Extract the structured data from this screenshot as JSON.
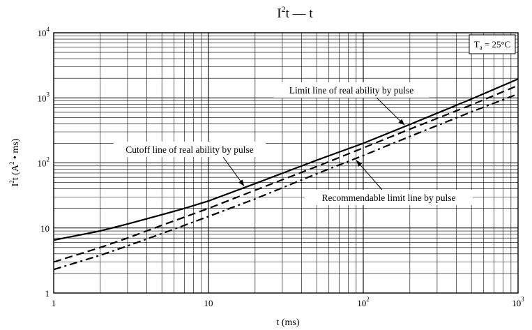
{
  "chart_data": {
    "type": "line",
    "title": {
      "main": "I",
      "sup": "2",
      "rest": "t — t"
    },
    "xlabel": "t (ms)",
    "ylabel": {
      "prefix": "I",
      "sup": "2",
      "middle": "t (A",
      "sup2": "2",
      "rest": " • ms)"
    },
    "x_scale": "log",
    "y_scale": "log",
    "xlim": [
      1,
      1000
    ],
    "ylim": [
      1,
      10000
    ],
    "grid": true,
    "x_ticks": [
      {
        "value": 1,
        "base": "1",
        "exp": ""
      },
      {
        "value": 10,
        "base": "10",
        "exp": ""
      },
      {
        "value": 100,
        "base": "10",
        "exp": "2"
      },
      {
        "value": 1000,
        "base": "10",
        "exp": "3"
      }
    ],
    "y_ticks": [
      {
        "value": 1,
        "base": "1",
        "exp": ""
      },
      {
        "value": 10,
        "base": "10",
        "exp": ""
      },
      {
        "value": 100,
        "base": "10",
        "exp": "2"
      },
      {
        "value": 1000,
        "base": "10",
        "exp": "3"
      },
      {
        "value": 10000,
        "base": "10",
        "exp": "4"
      }
    ],
    "condition": {
      "prefix": "T",
      "sub": "a",
      "rest": " = 25°C"
    },
    "series": [
      {
        "name": "Limit line of real ability by pulse",
        "style": "solid",
        "points": [
          [
            1,
            6.5
          ],
          [
            2,
            9
          ],
          [
            3,
            11.5
          ],
          [
            5,
            16
          ],
          [
            7,
            20
          ],
          [
            10,
            26
          ],
          [
            20,
            48
          ],
          [
            50,
            110
          ],
          [
            100,
            200
          ],
          [
            200,
            390
          ],
          [
            500,
            960
          ],
          [
            1000,
            1950
          ]
        ]
      },
      {
        "name": "Cutoff line of real ability by pulse",
        "style": "dashed",
        "points": [
          [
            1,
            3
          ],
          [
            2,
            5
          ],
          [
            3,
            7
          ],
          [
            5,
            11
          ],
          [
            10,
            20
          ],
          [
            20,
            38
          ],
          [
            50,
            88
          ],
          [
            100,
            170
          ],
          [
            200,
            330
          ],
          [
            500,
            780
          ],
          [
            1000,
            1550
          ]
        ]
      },
      {
        "name": "Recommendable limit line by pulse",
        "style": "dashdot",
        "points": [
          [
            1,
            2.3
          ],
          [
            2,
            3.8
          ],
          [
            3,
            5.3
          ],
          [
            5,
            8.2
          ],
          [
            10,
            15
          ],
          [
            20,
            28
          ],
          [
            50,
            68
          ],
          [
            100,
            130
          ],
          [
            200,
            255
          ],
          [
            500,
            610
          ],
          [
            1000,
            1150
          ]
        ]
      }
    ],
    "annotations": [
      {
        "text": "Limit line of real ability by pulse",
        "points_to": [
          185,
          380
        ]
      },
      {
        "text": "Cutoff line of real ability by pulse",
        "points_to": [
          17,
          44
        ]
      },
      {
        "text": "Recommendable limit line by pulse",
        "points_to": [
          90,
          110
        ]
      }
    ]
  }
}
